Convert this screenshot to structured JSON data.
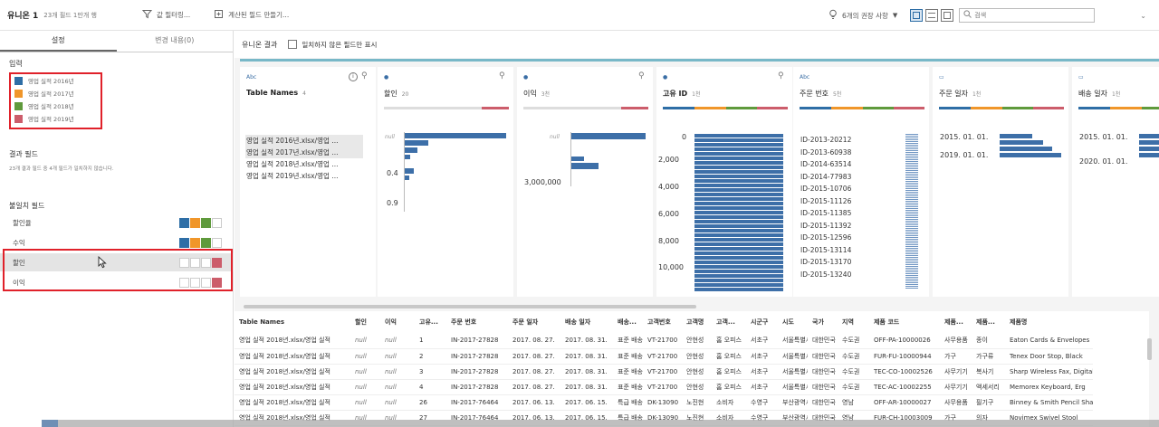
{
  "toolbar": {
    "title": "유니온 1",
    "subtitle": "23개 필드  1만개 행",
    "filter_label": "값 필터링...",
    "calc_label": "계산된 필드 만들기...",
    "recommend_label": "6개의 권장 사항",
    "search_placeholder": "검색"
  },
  "left": {
    "tabs": [
      "설정",
      "변경 내용(0)"
    ],
    "inputs_title": "입력",
    "inputs": [
      {
        "label": "영업 실적 2016년",
        "color": "#2e6ea6"
      },
      {
        "label": "영업 실적 2017년",
        "color": "#f0962a"
      },
      {
        "label": "영업 실적 2018년",
        "color": "#5f9a3c"
      },
      {
        "label": "영업 실적 2019년",
        "color": "#cc5d6b"
      }
    ],
    "result_title": "결과 필드",
    "result_desc": "23개 결과 필드 중 4개 필드가 일치하지 않습니다.",
    "mismatch_title": "불일치 필드",
    "mismatch_fields": [
      {
        "name": "할인율",
        "chips": [
          "#2e6ea6",
          "#f0962a",
          "#5f9a3c",
          "#ffffff"
        ]
      },
      {
        "name": "수익",
        "chips": [
          "#2e6ea6",
          "#f0962a",
          "#5f9a3c",
          "#ffffff"
        ]
      },
      {
        "name": "할인",
        "chips": [
          "#ffffff",
          "#ffffff",
          "#ffffff",
          "#cc5d6b"
        ]
      },
      {
        "name": "이익",
        "chips": [
          "#ffffff",
          "#ffffff",
          "#ffffff",
          "#cc5d6b"
        ]
      }
    ]
  },
  "main": {
    "result_label": "유니온 결과",
    "checkbox_label": "일치하지 않은 필드만 표시",
    "cards": [
      {
        "type": "Abc",
        "name": "Table Names",
        "count": "4",
        "bold": true,
        "values": [
          "영업 실적 2016년.xlsx/영업 ...",
          "영업 실적 2017년.xlsx/영업 ...",
          "영업 실적 2018년.xlsx/영업 ...",
          "영업 실적 2019년.xlsx/영업 ..."
        ]
      },
      {
        "type": "●",
        "name": "할인",
        "count": "20",
        "axis": [
          "null",
          "0.4",
          "0.9"
        ]
      },
      {
        "type": "●",
        "name": "이익",
        "count": "3천",
        "axis": [
          "null",
          "3,000,000"
        ]
      },
      {
        "type": "●",
        "name": "고유 ID",
        "count": "1천",
        "bold": true,
        "axis": [
          "0",
          "2,000",
          "4,000",
          "6,000",
          "8,000",
          "10,000"
        ]
      },
      {
        "type": "Abc",
        "name": "주문 번호",
        "count": "5천",
        "values": [
          "ID-2013-20212",
          "ID-2013-60938",
          "ID-2014-63514",
          "ID-2014-77983",
          "ID-2015-10706",
          "ID-2015-11126",
          "ID-2015-11385",
          "ID-2015-11392",
          "ID-2015-12596",
          "ID-2015-13114",
          "ID-2015-13170",
          "ID-2015-13240"
        ]
      },
      {
        "type": "▭",
        "name": "주문 일자",
        "count": "1천",
        "axis": [
          "2015. 01. 01.",
          "2019. 01. 01."
        ]
      },
      {
        "type": "▭",
        "name": "배송 일자",
        "count": "1천",
        "axis": [
          "2015. 01. 01.",
          "2020. 01. 01."
        ]
      }
    ],
    "columns": [
      "Table Names",
      "할인",
      "이익",
      "고유...",
      "주문 번호",
      "주문 일자",
      "배송 일자",
      "배송...",
      "고객번호",
      "고객명",
      "고객...",
      "시군구",
      "시도",
      "국가",
      "지역",
      "제품 코드",
      "제품...",
      "제품...",
      "제품명"
    ],
    "rows": [
      [
        "영업 실적 2018년.xlsx/영업 실적",
        "null",
        "null",
        "1",
        "IN-2017-27828",
        "2017. 08. 27.",
        "2017. 08. 31.",
        "표준 배송",
        "VT-21700",
        "안현성",
        "홈 오피스",
        "서초구",
        "서울특별시",
        "대한민국",
        "수도권",
        "OFF-PA-10000026",
        "사무용품",
        "종이",
        "Eaton Cards & Envelopes"
      ],
      [
        "영업 실적 2018년.xlsx/영업 실적",
        "null",
        "null",
        "2",
        "IN-2017-27828",
        "2017. 08. 27.",
        "2017. 08. 31.",
        "표준 배송",
        "VT-21700",
        "안현성",
        "홈 오피스",
        "서초구",
        "서울특별시",
        "대한민국",
        "수도권",
        "FUR-FU-10000944",
        "가구",
        "가구류",
        "Tenex Door Stop, Black"
      ],
      [
        "영업 실적 2018년.xlsx/영업 실적",
        "null",
        "null",
        "3",
        "IN-2017-27828",
        "2017. 08. 27.",
        "2017. 08. 31.",
        "표준 배송",
        "VT-21700",
        "안현성",
        "홈 오피스",
        "서초구",
        "서울특별시",
        "대한민국",
        "수도권",
        "TEC-CO-10002526",
        "사무기기",
        "복사기",
        "Sharp Wireless Fax, Digital"
      ],
      [
        "영업 실적 2018년.xlsx/영업 실적",
        "null",
        "null",
        "4",
        "IN-2017-27828",
        "2017. 08. 27.",
        "2017. 08. 31.",
        "표준 배송",
        "VT-21700",
        "안현성",
        "홈 오피스",
        "서초구",
        "서울특별시",
        "대한민국",
        "수도권",
        "TEC-AC-10002255",
        "사무기기",
        "액세서리",
        "Memorex Keyboard, Erg"
      ],
      [
        "영업 실적 2018년.xlsx/영업 실적",
        "null",
        "null",
        "26",
        "IN-2017-76464",
        "2017. 06. 13.",
        "2017. 06. 15.",
        "특급 배송",
        "DK-13090",
        "노진현",
        "소비자",
        "수영구",
        "부산광역시",
        "대한민국",
        "영남",
        "OFF-AR-10000027",
        "사무용품",
        "필기구",
        "Binney & Smith Pencil Sharpener"
      ],
      [
        "영업 실적 2018년.xlsx/영업 실적",
        "null",
        "null",
        "27",
        "IN-2017-76464",
        "2017. 06. 13.",
        "2017. 06. 15.",
        "특급 배송",
        "DK-13090",
        "노진현",
        "소비자",
        "수영구",
        "부산광역시",
        "대한민국",
        "영남",
        "FUR-CH-10003009",
        "가구",
        "의자",
        "Novimex Swivel Stool"
      ]
    ]
  },
  "colors": {
    "blue": "#2e6ea6",
    "orange": "#f0962a",
    "green": "#5f9a3c",
    "red": "#cc5d6b",
    "bar": "#3d6fa8",
    "teal": "#78b8c8",
    "highlight": "#e0212a"
  }
}
